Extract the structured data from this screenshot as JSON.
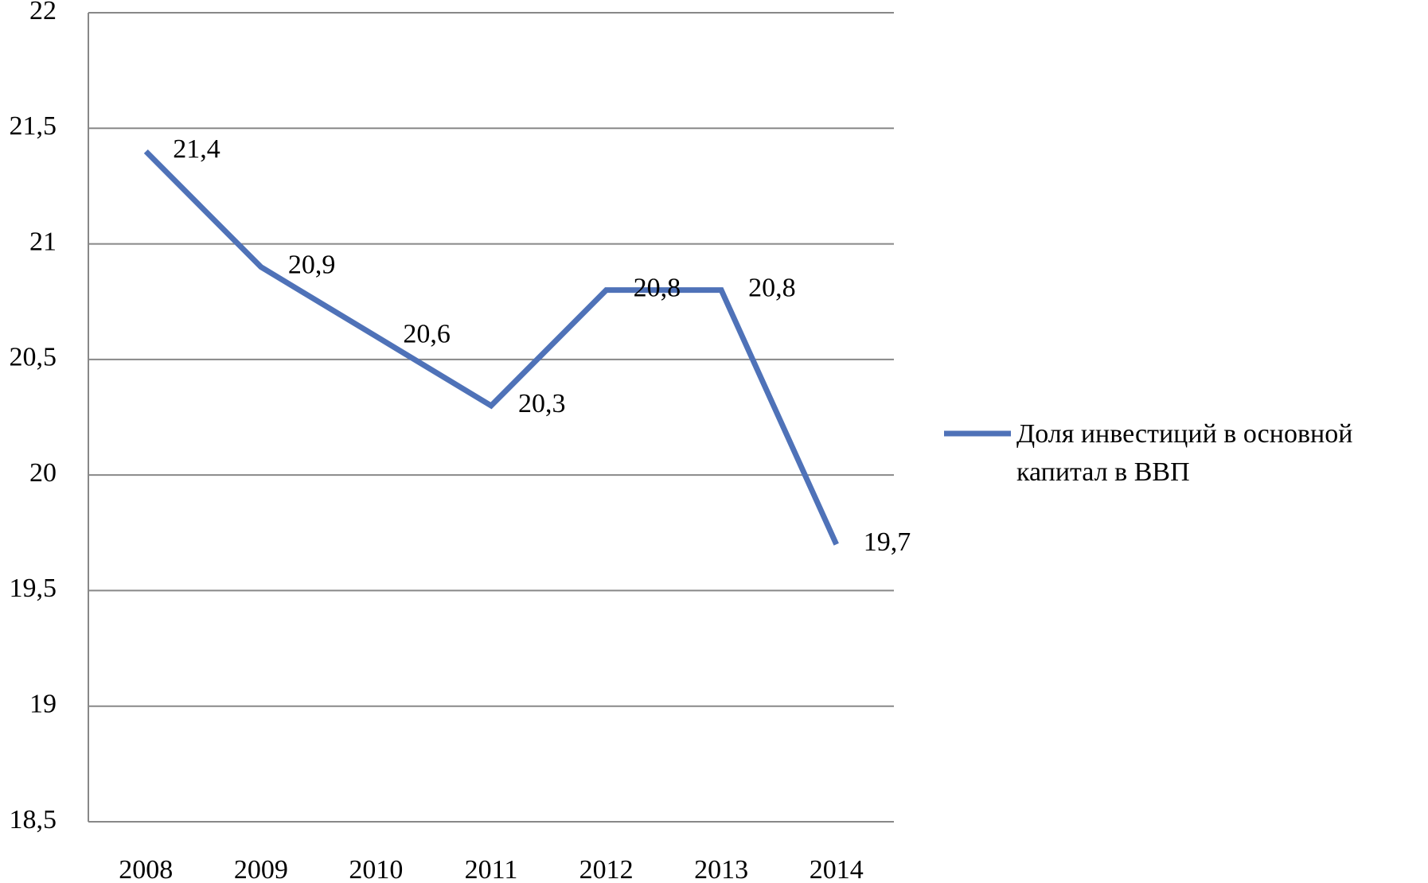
{
  "chart_data": {
    "type": "line",
    "categories": [
      "2008",
      "2009",
      "2010",
      "2011",
      "2012",
      "2013",
      "2014"
    ],
    "series": [
      {
        "name": "Доля инвестиций в основной капитал в ВВП",
        "color": "#4f72b8",
        "values": [
          21.4,
          20.9,
          20.6,
          20.3,
          20.8,
          20.8,
          19.7
        ],
        "value_labels": [
          "21,4",
          "20,9",
          "20,6",
          "20,3",
          "20,8",
          "20,8",
          "19,7"
        ]
      }
    ],
    "ylim": [
      18.5,
      22
    ],
    "yticks": [
      {
        "value": 18.5,
        "label": "18,5"
      },
      19,
      {
        "value": 19.5,
        "label": "19,5"
      },
      20,
      {
        "value": 20.5,
        "label": "20,5"
      },
      21,
      {
        "value": 21.5,
        "label": "21,5"
      },
      22
    ],
    "grid": true,
    "legend": "right"
  }
}
